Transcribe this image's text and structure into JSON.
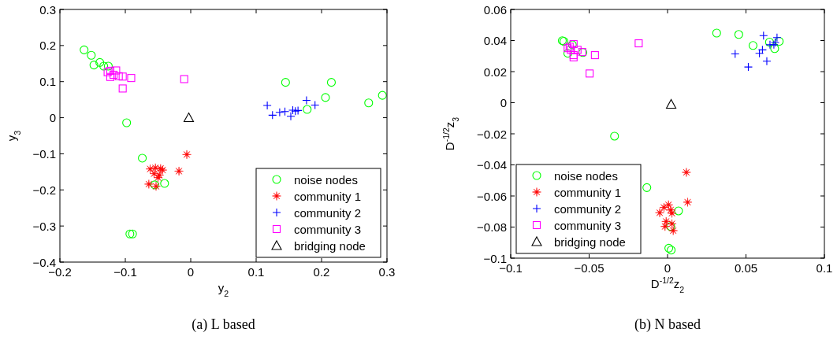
{
  "chart_data": [
    {
      "type": "scatter",
      "title": "(a) L based",
      "xlabel": "y$_{2}$",
      "ylabel": "y$_{3}$",
      "xlim": [
        -0.2,
        0.3
      ],
      "xticks": [
        -0.2,
        -0.1,
        0,
        0.1,
        0.2,
        0.3
      ],
      "ylim": [
        -0.4,
        0.3
      ],
      "yticks": [
        -0.4,
        -0.3,
        -0.2,
        -0.1,
        0,
        0.1,
        0.2,
        0.3
      ],
      "legend": "bottom right",
      "series": [
        {
          "name": "noise nodes",
          "color": "#00ff00",
          "marker": "circle",
          "x": [
            -0.163,
            -0.152,
            -0.148,
            -0.139,
            -0.133,
            -0.126,
            -0.098,
            -0.074,
            -0.055,
            -0.04,
            -0.093,
            -0.089,
            0.145,
            0.215,
            0.206,
            0.178,
            0.272,
            0.293
          ],
          "values": [
            0.188,
            0.173,
            0.146,
            0.153,
            0.143,
            0.143,
            -0.014,
            -0.112,
            -0.186,
            -0.182,
            -0.322,
            -0.322,
            0.098,
            0.098,
            0.056,
            0.023,
            0.041,
            0.062
          ]
        },
        {
          "name": "community 1",
          "color": "#ff0000",
          "marker": "star",
          "x": [
            -0.062,
            -0.054,
            -0.046,
            -0.043,
            -0.056,
            -0.05,
            -0.048,
            -0.064,
            -0.053,
            -0.018,
            -0.006
          ],
          "values": [
            -0.142,
            -0.139,
            -0.141,
            -0.145,
            -0.155,
            -0.166,
            -0.159,
            -0.184,
            -0.19,
            -0.148,
            -0.102
          ]
        },
        {
          "name": "community 2",
          "color": "#0000ff",
          "marker": "cross",
          "x": [
            0.117,
            0.125,
            0.136,
            0.144,
            0.153,
            0.156,
            0.16,
            0.164,
            0.177,
            0.19
          ],
          "values": [
            0.034,
            0.007,
            0.015,
            0.017,
            0.004,
            0.021,
            0.018,
            0.02,
            0.048,
            0.035
          ]
        },
        {
          "name": "community 3",
          "color": "#ff00ff",
          "marker": "square",
          "x": [
            -0.127,
            -0.123,
            -0.114,
            -0.118,
            -0.123,
            -0.11,
            -0.104,
            -0.091,
            -0.104,
            -0.01
          ],
          "values": [
            0.126,
            0.13,
            0.131,
            0.119,
            0.113,
            0.115,
            0.114,
            0.11,
            0.081,
            0.107
          ]
        },
        {
          "name": "bridging node",
          "color": "#000000",
          "marker": "triangle",
          "x": [
            -0.003
          ],
          "values": [
            0
          ]
        }
      ]
    },
    {
      "type": "scatter",
      "title": "(b) N based",
      "xlabel": "D$^{-1/2}$z$_{2}$",
      "ylabel": "D$^{-1/2}$z$_{3}$",
      "xlim": [
        -0.1,
        0.1
      ],
      "xticks": [
        -0.1,
        -0.05,
        0,
        0.05,
        0.1
      ],
      "ylim": [
        -0.1,
        0.06
      ],
      "yticks": [
        -0.1,
        -0.08,
        -0.06,
        -0.04,
        -0.02,
        0,
        0.02,
        0.04,
        0.06
      ],
      "legend": "bottom left",
      "series": [
        {
          "name": "noise nodes",
          "color": "#00ff00",
          "marker": "circle",
          "x": [
            -0.0671,
            -0.0661,
            -0.0607,
            -0.0636,
            -0.054,
            -0.0338,
            -0.0132,
            0.007,
            0.0008,
            0.0023,
            0.002,
            0.0313,
            0.0454,
            0.0545,
            0.065,
            0.0683,
            0.0712
          ],
          "values": [
            0.0399,
            0.0395,
            0.0373,
            0.0318,
            0.0323,
            -0.0215,
            -0.0546,
            -0.0696,
            -0.0936,
            -0.0948,
            -0.0796,
            0.0448,
            0.0439,
            0.0368,
            0.039,
            0.0348,
            0.0395
          ]
        },
        {
          "name": "community 1",
          "color": "#ff0000",
          "marker": "star",
          "x": [
            0.0006,
            -0.0023,
            -0.005,
            0.002,
            0.0028,
            -0.0009,
            -0.0016,
            0.0028,
            0.0036,
            0.012,
            0.0128
          ],
          "values": [
            -0.0657,
            -0.0674,
            -0.0708,
            -0.069,
            -0.0711,
            -0.0764,
            -0.0796,
            -0.0779,
            -0.0823,
            -0.0448,
            -0.064
          ]
        },
        {
          "name": "community 2",
          "color": "#0000ff",
          "marker": "cross",
          "x": [
            0.0431,
            0.0515,
            0.0586,
            0.0612,
            0.0605,
            0.0633,
            0.0653,
            0.0678,
            0.0698,
            0.0686
          ],
          "values": [
            0.0314,
            0.023,
            0.0318,
            0.0432,
            0.034,
            0.0267,
            0.0373,
            0.0373,
            0.0419,
            0.0387
          ]
        },
        {
          "name": "community 3",
          "color": "#ff00ff",
          "marker": "square",
          "x": [
            -0.0637,
            -0.0624,
            -0.0599,
            -0.0616,
            -0.0599,
            -0.0599,
            -0.0574,
            -0.0544,
            -0.0463,
            -0.0497,
            -0.0184
          ],
          "values": [
            0.0351,
            0.036,
            0.0377,
            0.034,
            0.0306,
            0.0292,
            0.034,
            0.0326,
            0.0306,
            0.0188,
            0.0382
          ]
        },
        {
          "name": "bridging node",
          "color": "#000000",
          "marker": "triangle",
          "x": [
            0.0023
          ],
          "values": [
            -0.001
          ]
        }
      ]
    }
  ]
}
